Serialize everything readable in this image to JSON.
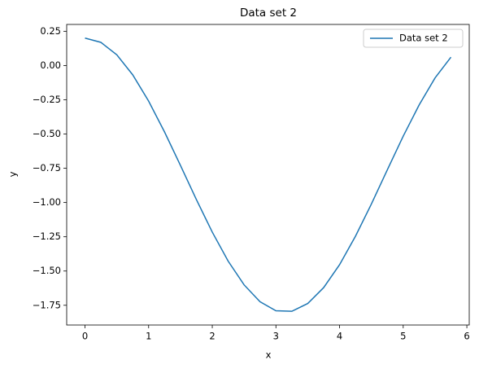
{
  "chart_data": {
    "type": "line",
    "title": "Data set 2",
    "x_label": "x",
    "y_label": "y",
    "x": [
      0,
      0.25,
      0.5,
      0.75,
      1,
      1.25,
      1.5,
      1.75,
      2,
      2.25,
      2.5,
      2.75,
      3,
      3.25,
      3.5,
      3.75,
      4,
      4.25,
      4.5,
      4.75,
      5,
      5.25,
      5.5,
      5.75
    ],
    "series": [
      {
        "name": "Data set 2",
        "color": "#1f77b4",
        "values": [
          0.2,
          0.169,
          0.078,
          -0.068,
          -0.26,
          -0.485,
          -0.729,
          -0.978,
          -1.216,
          -1.428,
          -1.601,
          -1.724,
          -1.79,
          -1.794,
          -1.737,
          -1.621,
          -1.454,
          -1.246,
          -1.011,
          -0.762,
          -0.516,
          -0.288,
          -0.091,
          0.061
        ]
      }
    ],
    "xlim": [
      -0.2875,
      6.0375
    ],
    "ylim": [
      -1.894,
      0.2997
    ],
    "xticks": [
      0,
      1,
      2,
      3,
      4,
      5,
      6
    ],
    "yticks": [
      0.25,
      {
        "value": 0,
        "label": "0.00"
      },
      {
        "value": -0.25,
        "label": "−0.25"
      },
      {
        "value": -0.5,
        "label": "−0.50"
      },
      {
        "value": -0.75,
        "label": "−0.75"
      },
      {
        "value": -1,
        "label": "−1.00"
      },
      {
        "value": -1.25,
        "label": "−1.25"
      },
      {
        "value": -1.5,
        "label": "−1.50"
      },
      {
        "value": -1.75,
        "label": "−1.75"
      }
    ],
    "legend": "upper right",
    "grid": false
  }
}
